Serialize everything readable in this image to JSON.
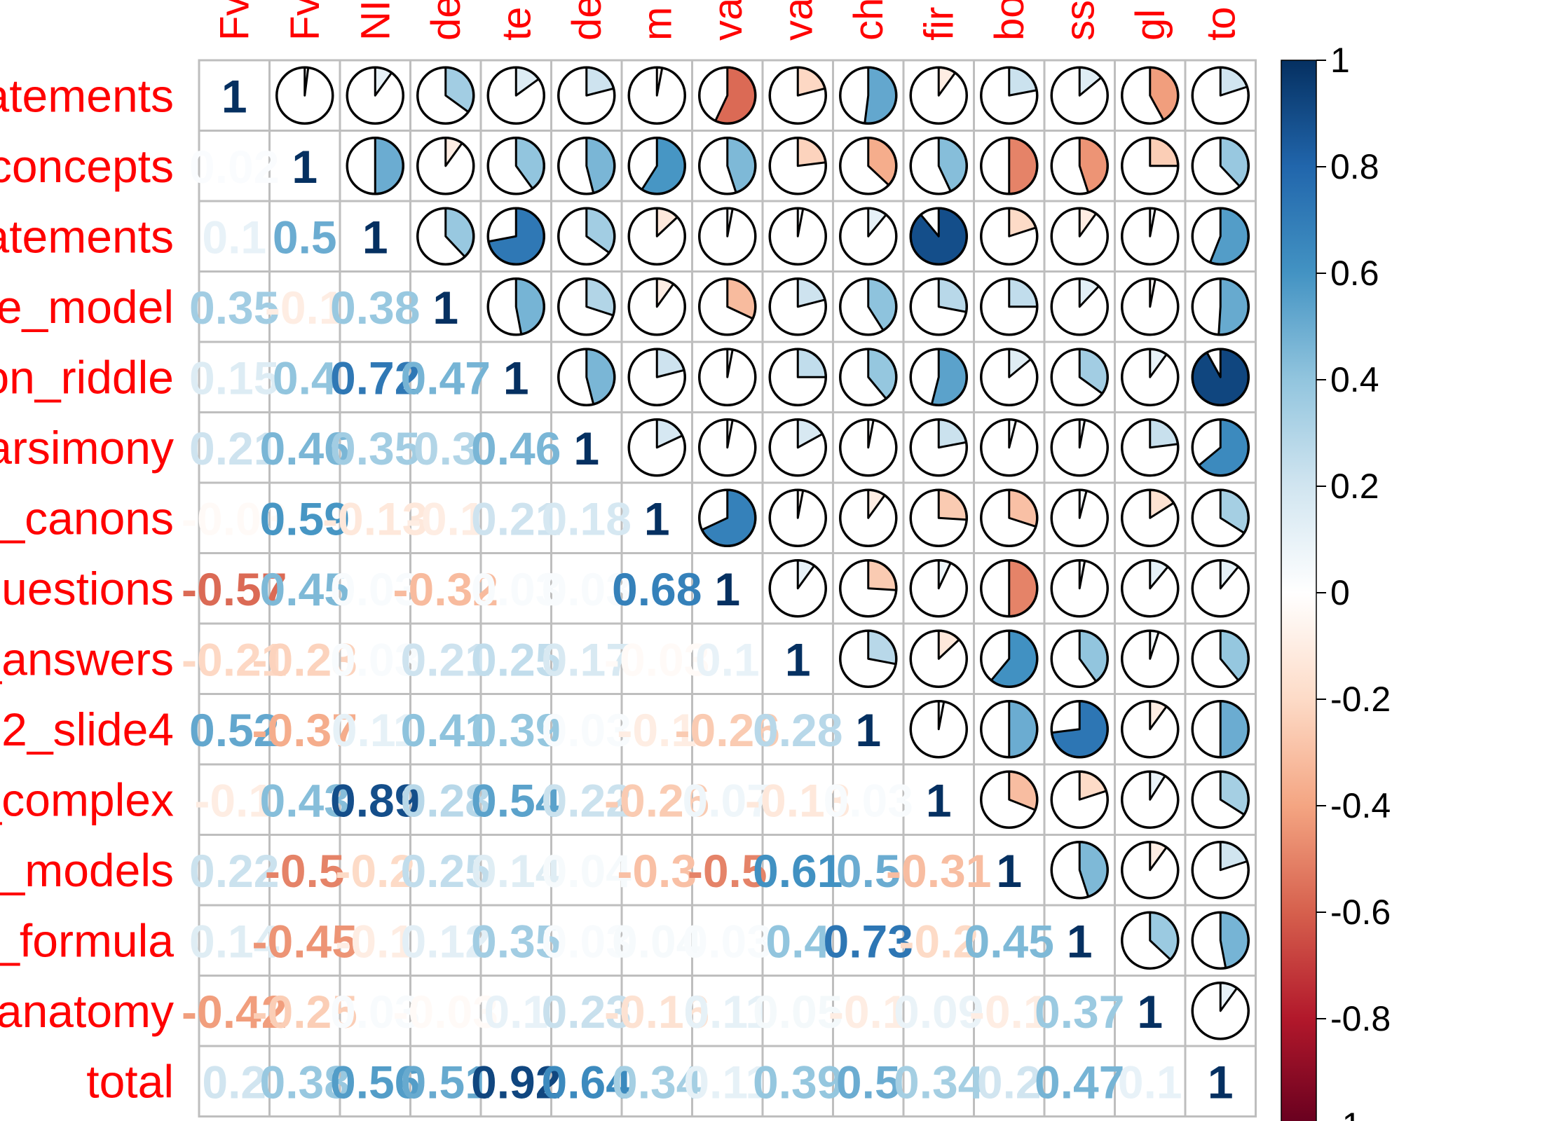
{
  "chart_data": {
    "type": "heatmap",
    "method": "mixed: lower=number, upper=pie",
    "title": "",
    "row_labels": [
      "atements",
      "concepts",
      "atements",
      "e_model",
      "on_riddle",
      "arsimony",
      "_canons",
      "uestions",
      "_answers",
      "2_slide4",
      "_complex",
      "_models",
      "_formula",
      "anatomy",
      "total"
    ],
    "col_labels": [
      "Fv",
      "Fv",
      "NI",
      "de",
      "te",
      "de",
      "m",
      "va",
      "va",
      "ch",
      "fir",
      "bo",
      "ss",
      "gl",
      "to"
    ],
    "matrix": [
      [
        1,
        0.02,
        0.1,
        0.35,
        0.15,
        0.21,
        -0.03,
        -0.57,
        -0.21,
        0.52,
        -0.1,
        0.22,
        0.14,
        -0.42,
        0.2
      ],
      [
        0.02,
        1,
        0.5,
        -0.1,
        0.4,
        0.46,
        0.59,
        0.45,
        -0.23,
        -0.37,
        0.43,
        -0.5,
        -0.45,
        -0.25,
        0.38
      ],
      [
        0.1,
        0.5,
        1,
        0.38,
        0.72,
        0.35,
        -0.13,
        0.03,
        0.03,
        0.11,
        0.89,
        -0.2,
        -0.1,
        0.03,
        0.56
      ],
      [
        0.35,
        -0.1,
        0.38,
        1,
        0.47,
        0.3,
        -0.1,
        -0.32,
        0.21,
        0.41,
        0.28,
        0.25,
        0.12,
        -0.03,
        0.51
      ],
      [
        0.15,
        0.4,
        0.72,
        0.47,
        1,
        0.46,
        0.21,
        0.03,
        0.25,
        0.39,
        0.54,
        0.14,
        0.35,
        0.1,
        0.92
      ],
      [
        0.21,
        0.46,
        0.35,
        0.3,
        0.46,
        1,
        0.18,
        0.03,
        0.17,
        0.03,
        0.22,
        0.04,
        0.03,
        0.23,
        0.64
      ],
      [
        -0.03,
        0.59,
        -0.13,
        -0.1,
        0.21,
        0.18,
        1,
        0.68,
        -0.03,
        -0.1,
        -0.26,
        -0.3,
        0.04,
        -0.16,
        0.34
      ],
      [
        -0.57,
        0.45,
        0.03,
        -0.32,
        0.03,
        0.03,
        0.68,
        1,
        0.1,
        -0.26,
        0.07,
        -0.5,
        0.03,
        0.11,
        0.11
      ],
      [
        -0.21,
        -0.23,
        0.03,
        0.21,
        0.25,
        0.17,
        -0.03,
        0.1,
        1,
        0.28,
        -0.13,
        0.61,
        0.4,
        0.05,
        0.39
      ],
      [
        0.52,
        -0.37,
        0.11,
        0.41,
        0.39,
        0.03,
        -0.1,
        -0.26,
        0.28,
        1,
        0.03,
        0.5,
        0.73,
        -0.1,
        0.5
      ],
      [
        -0.1,
        0.43,
        0.89,
        0.28,
        0.54,
        0.22,
        -0.26,
        0.07,
        -0.13,
        0.03,
        1,
        -0.31,
        -0.2,
        0.09,
        0.34
      ],
      [
        0.22,
        -0.5,
        -0.2,
        0.25,
        0.14,
        0.04,
        -0.3,
        -0.5,
        0.61,
        0.5,
        -0.31,
        1,
        0.45,
        -0.1,
        0.2
      ],
      [
        0.14,
        -0.45,
        -0.1,
        0.12,
        0.35,
        0.03,
        0.04,
        0.03,
        0.4,
        0.73,
        -0.2,
        0.45,
        1,
        0.37,
        0.47
      ],
      [
        -0.42,
        -0.25,
        0.03,
        -0.03,
        0.1,
        0.23,
        -0.16,
        0.11,
        0.05,
        -0.1,
        0.09,
        -0.1,
        0.37,
        1,
        0.1
      ],
      [
        0.2,
        0.38,
        0.56,
        0.51,
        0.92,
        0.64,
        0.34,
        0.11,
        0.39,
        0.5,
        0.34,
        0.2,
        0.47,
        0.1,
        1
      ]
    ],
    "colorbar": {
      "ticks": [
        "1",
        "0.8",
        "0.6",
        "0.4",
        "0.2",
        "0",
        "-0.2",
        "-0.4",
        "-0.6",
        "-0.8",
        "-1"
      ],
      "range": [
        -1,
        1
      ]
    },
    "palette": [
      "#67001f",
      "#b2182b",
      "#d6604d",
      "#f4a582",
      "#fddbc7",
      "#ffffff",
      "#d1e5f0",
      "#92c5de",
      "#4393c3",
      "#2166ac",
      "#053061"
    ],
    "label_color": "#ff0000",
    "grid_color": "#bebebe"
  }
}
